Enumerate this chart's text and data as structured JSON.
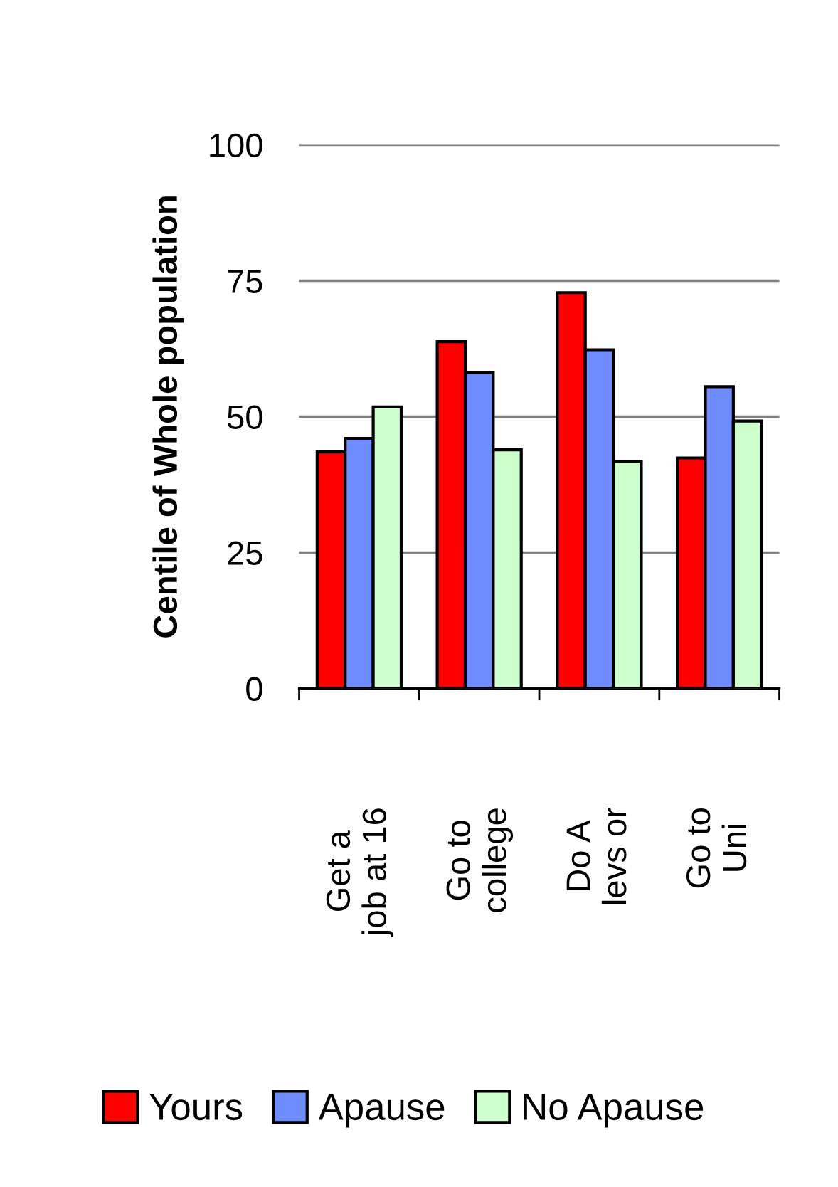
{
  "chart_data": {
    "type": "bar",
    "ylabel": "Centile of Whole population",
    "categories": [
      "Get a\njob at 16",
      "Go to\ncollege",
      "Do A\nlevs or",
      "Go to\nUni"
    ],
    "series": [
      {
        "name": "Yours",
        "color": "#ff0000",
        "values": [
          43.5,
          63.8,
          72.8,
          42.4
        ]
      },
      {
        "name": "Apause",
        "color": "#6f8cff",
        "values": [
          46,
          58.1,
          62.3,
          55.5
        ]
      },
      {
        "name": "No Apause",
        "color": "#ccffcc",
        "values": [
          51.8,
          43.9,
          41.8,
          49.2
        ]
      }
    ],
    "ylim": [
      0,
      100
    ],
    "yticks": [
      0,
      25,
      50,
      75,
      100
    ],
    "grid": "y",
    "legend": "bottom"
  }
}
